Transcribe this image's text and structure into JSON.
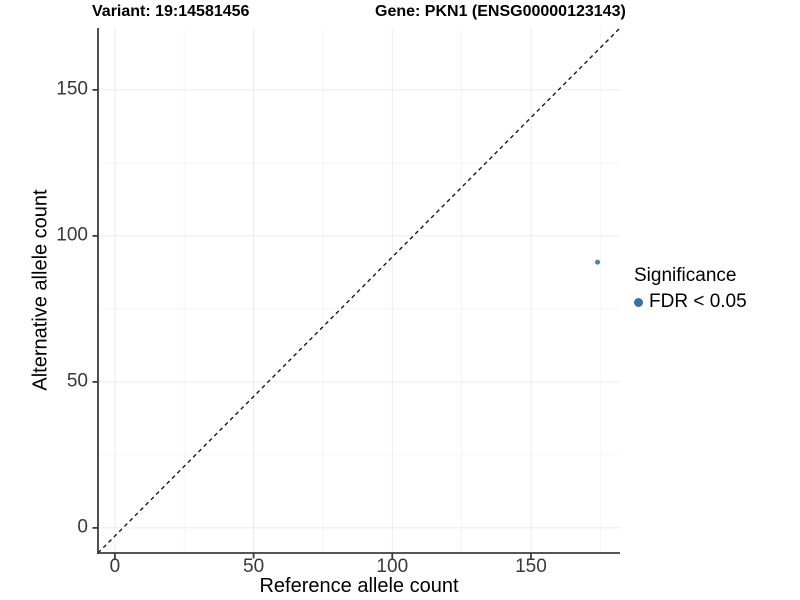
{
  "chart_data": {
    "type": "scatter",
    "titles": {
      "left": "Variant: 19:14581456",
      "right": "Gene: PKN1 (ENSG00000123143)"
    },
    "xlabel": "Reference allele count",
    "ylabel": "Alternative allele count",
    "xlim": [
      -6.1,
      182.1
    ],
    "ylim": [
      -8.6,
      171.2
    ],
    "x_ticks": [
      0,
      50,
      100,
      150
    ],
    "y_ticks": [
      0,
      50,
      100,
      150
    ],
    "grid": {
      "on": true,
      "x_minor": [
        25,
        75,
        125,
        175
      ],
      "y_minor": [
        25,
        75,
        125
      ]
    },
    "identity_line": {
      "linetype": "dashed",
      "color": "#1a1a1a",
      "from": "bottom-left-corner",
      "to": "top-right-corner"
    },
    "points": [
      {
        "x": 174,
        "y": 91,
        "significance": "FDR < 0.05",
        "color": "#527fae",
        "radius": 2.5
      }
    ],
    "legend": {
      "title": "Significance",
      "position": "right",
      "items": [
        {
          "label": "FDR < 0.05",
          "color": "#3e6fa0"
        }
      ]
    },
    "colors": {
      "axis_line": "#3d3d3d",
      "tick_text": "#383838",
      "grid_major": "#ececec",
      "grid_minor": "#f5f5f5",
      "background": "#ffffff"
    }
  }
}
